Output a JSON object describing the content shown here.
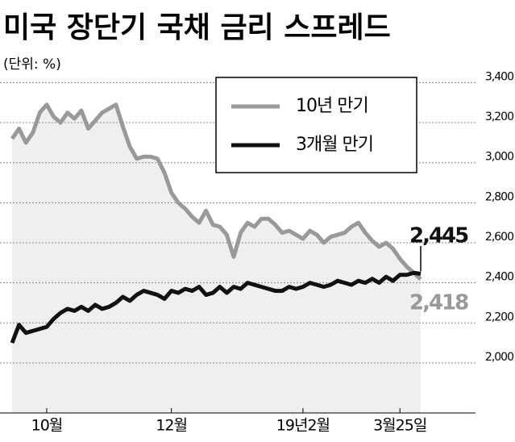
{
  "chart_data": {
    "type": "line",
    "title": "미국 장단기 국채 금리 스프레드",
    "subtitle": "(단위: %)",
    "categories": [
      null,
      null,
      null,
      null,
      null,
      "10월",
      null,
      null,
      null,
      null,
      null,
      null,
      null,
      null,
      null,
      null,
      null,
      null,
      null,
      null,
      null,
      null,
      null,
      "12월",
      null,
      null,
      null,
      null,
      null,
      null,
      null,
      null,
      null,
      null,
      null,
      null,
      null,
      null,
      null,
      null,
      null,
      null,
      "19년2월",
      null,
      null,
      null,
      null,
      null,
      null,
      null,
      null,
      null,
      null,
      null,
      null,
      null,
      "3월25일",
      null,
      null,
      null
    ],
    "series": [
      {
        "name": "10년 만기",
        "color": "#999999",
        "values": [
          3.12,
          3.17,
          3.1,
          3.15,
          3.25,
          3.29,
          3.23,
          3.2,
          3.25,
          3.22,
          3.26,
          3.17,
          3.21,
          3.25,
          3.27,
          3.29,
          3.18,
          3.08,
          3.02,
          3.03,
          3.03,
          3.02,
          2.95,
          2.85,
          2.8,
          2.77,
          2.73,
          2.7,
          2.76,
          2.69,
          2.68,
          2.64,
          2.53,
          2.65,
          2.7,
          2.68,
          2.72,
          2.72,
          2.69,
          2.65,
          2.66,
          2.64,
          2.62,
          2.66,
          2.64,
          2.6,
          2.63,
          2.64,
          2.65,
          2.68,
          2.7,
          2.65,
          2.61,
          2.58,
          2.6,
          2.57,
          2.52,
          2.48,
          2.45,
          2.418
        ],
        "value_labels": [
          null,
          null,
          null,
          null,
          null,
          null,
          null,
          null,
          null,
          null,
          null,
          null,
          null,
          null,
          null,
          null,
          null,
          null,
          null,
          null,
          null,
          null,
          null,
          null,
          null,
          null,
          null,
          null,
          null,
          null,
          null,
          null,
          null,
          null,
          null,
          null,
          null,
          null,
          null,
          null,
          null,
          null,
          null,
          null,
          null,
          null,
          null,
          null,
          null,
          null,
          null,
          null,
          null,
          null,
          null,
          null,
          null,
          null,
          null,
          "2,418"
        ]
      },
      {
        "name": "3개월 만기",
        "color": "#111111",
        "values": [
          2.1,
          2.19,
          2.15,
          2.16,
          2.17,
          2.18,
          2.22,
          2.25,
          2.27,
          2.26,
          2.28,
          2.26,
          2.29,
          2.27,
          2.28,
          2.3,
          2.33,
          2.31,
          2.34,
          2.36,
          2.35,
          2.34,
          2.32,
          2.36,
          2.35,
          2.37,
          2.36,
          2.38,
          2.34,
          2.35,
          2.38,
          2.35,
          2.38,
          2.37,
          2.4,
          2.39,
          2.38,
          2.37,
          2.36,
          2.36,
          2.38,
          2.37,
          2.38,
          2.4,
          2.39,
          2.38,
          2.39,
          2.41,
          2.4,
          2.39,
          2.41,
          2.4,
          2.42,
          2.4,
          2.43,
          2.41,
          2.44,
          2.44,
          2.45,
          2.445
        ],
        "value_labels": [
          null,
          null,
          null,
          null,
          null,
          null,
          null,
          null,
          null,
          null,
          null,
          null,
          null,
          null,
          null,
          null,
          null,
          null,
          null,
          null,
          null,
          null,
          null,
          null,
          null,
          null,
          null,
          null,
          null,
          null,
          null,
          null,
          null,
          null,
          null,
          null,
          null,
          null,
          null,
          null,
          null,
          null,
          null,
          null,
          null,
          null,
          null,
          null,
          null,
          null,
          null,
          null,
          null,
          null,
          null,
          null,
          null,
          null,
          null,
          "2,445"
        ]
      }
    ],
    "ylim": [
      1.75,
      3.45
    ],
    "yticks": [
      {
        "value": 2.0,
        "label": "2,000"
      },
      {
        "value": 2.2,
        "label": "2,200"
      },
      {
        "value": 2.4,
        "label": "2,400"
      },
      {
        "value": 2.6,
        "label": "2,600"
      },
      {
        "value": 2.8,
        "label": "2,800"
      },
      {
        "value": 3.0,
        "label": "3,000"
      },
      {
        "value": 3.2,
        "label": "3,200"
      },
      {
        "value": 3.4,
        "label": "3,400"
      }
    ],
    "grid": true
  }
}
